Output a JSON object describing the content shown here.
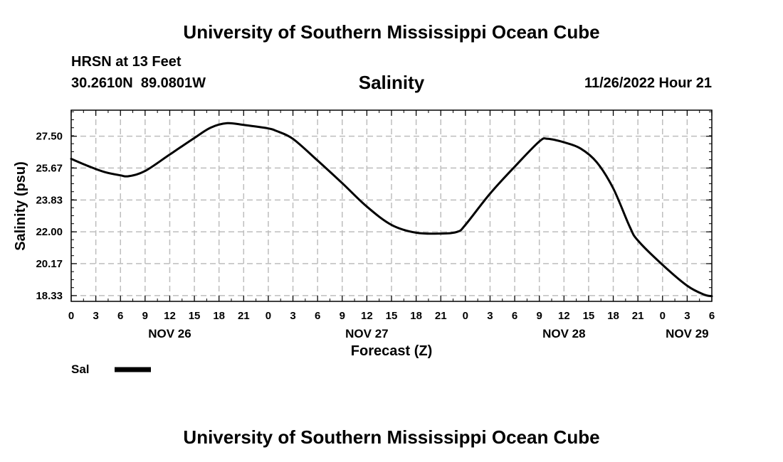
{
  "header": {
    "title": "University of Southern Mississippi Ocean Cube",
    "station": "HRSN at 13 Feet",
    "coords": "30.2610N  89.0801W",
    "chart_title": "Salinity",
    "timestamp": "11/26/2022 Hour 21"
  },
  "legend": {
    "label": "Sal",
    "color": "#000000"
  },
  "footer": {
    "title": "University of Southern Mississippi Ocean Cube"
  },
  "chart_data": {
    "type": "line",
    "title": "Salinity",
    "xlabel": "Forecast (Z)",
    "ylabel": "Salinity (psu)",
    "x_unit": "hours from Nov 26 00Z",
    "x_tick_values": [
      0,
      3,
      6,
      9,
      12,
      15,
      18,
      21,
      24,
      27,
      30,
      33,
      36,
      39,
      42,
      45,
      48,
      51,
      54,
      57,
      60,
      63,
      66,
      69,
      72,
      75,
      78
    ],
    "x_tick_labels": [
      "0",
      "3",
      "6",
      "9",
      "12",
      "15",
      "18",
      "21",
      "0",
      "3",
      "6",
      "9",
      "12",
      "15",
      "18",
      "21",
      "0",
      "3",
      "6",
      "9",
      "12",
      "15",
      "18",
      "21",
      "0",
      "3",
      "6"
    ],
    "date_labels": [
      {
        "x": 12,
        "text": "NOV 26"
      },
      {
        "x": 36,
        "text": "NOV 27"
      },
      {
        "x": 60,
        "text": "NOV 28"
      },
      {
        "x": 75,
        "text": "NOV 29"
      }
    ],
    "y_ticks": [
      18.33,
      20.17,
      22.0,
      23.83,
      25.67,
      27.5
    ],
    "y_tick_labels": [
      "18.33",
      "20.17",
      "22.00",
      "23.83",
      "25.67",
      "27.50"
    ],
    "xlim": [
      0,
      78
    ],
    "ylim": [
      18.0,
      29.0
    ],
    "grid": true,
    "series": [
      {
        "name": "Sal",
        "color": "#000000",
        "points": [
          [
            0,
            26.2
          ],
          [
            2,
            25.8
          ],
          [
            4,
            25.45
          ],
          [
            6,
            25.25
          ],
          [
            7,
            25.2
          ],
          [
            9,
            25.5
          ],
          [
            12,
            26.45
          ],
          [
            15,
            27.4
          ],
          [
            17,
            28.0
          ],
          [
            19,
            28.25
          ],
          [
            21,
            28.15
          ],
          [
            24,
            27.95
          ],
          [
            25,
            27.8
          ],
          [
            27,
            27.35
          ],
          [
            30,
            26.1
          ],
          [
            33,
            24.8
          ],
          [
            36,
            23.45
          ],
          [
            39,
            22.4
          ],
          [
            42,
            21.95
          ],
          [
            45,
            21.9
          ],
          [
            47,
            22.0
          ],
          [
            48,
            22.4
          ],
          [
            51,
            24.2
          ],
          [
            54,
            25.75
          ],
          [
            57,
            27.2
          ],
          [
            58,
            27.35
          ],
          [
            60,
            27.15
          ],
          [
            62,
            26.8
          ],
          [
            64,
            26.0
          ],
          [
            66,
            24.5
          ],
          [
            68,
            22.3
          ],
          [
            69,
            21.5
          ],
          [
            72,
            20.1
          ],
          [
            75,
            18.9
          ],
          [
            77,
            18.4
          ],
          [
            78,
            18.3
          ]
        ]
      }
    ]
  }
}
